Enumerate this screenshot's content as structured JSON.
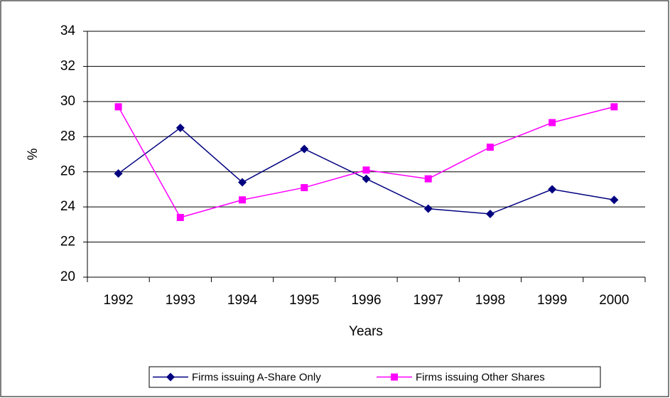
{
  "chart_data": {
    "type": "line",
    "x_label": "Years",
    "y_label": "%",
    "categories": [
      "1992",
      "1993",
      "1994",
      "1995",
      "1996",
      "1997",
      "1998",
      "1999",
      "2000"
    ],
    "series": [
      {
        "name": "Firms issuing A-Share Only",
        "color": "#000080",
        "marker": "diamond",
        "values": [
          25.9,
          28.5,
          25.4,
          27.3,
          25.6,
          23.9,
          23.6,
          25.0,
          24.4
        ]
      },
      {
        "name": "Firms issuing Other Shares",
        "color": "#ff00ff",
        "marker": "square",
        "values": [
          29.7,
          23.4,
          24.4,
          25.1,
          26.1,
          25.6,
          27.4,
          28.8,
          29.7
        ]
      }
    ],
    "ylim": [
      20,
      34
    ],
    "yticks": [
      20,
      22,
      24,
      26,
      28,
      30,
      32,
      34
    ],
    "grid": true,
    "legend": "bottom"
  }
}
